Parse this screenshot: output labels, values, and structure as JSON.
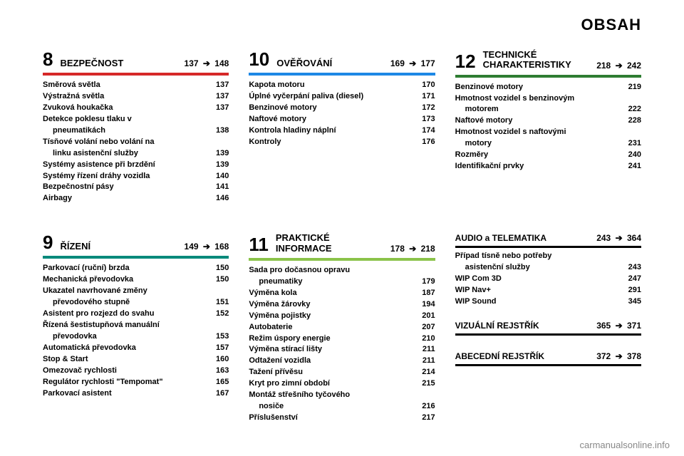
{
  "page_title": "OBSAH",
  "footer": "carmanualsonline.info",
  "sections": [
    {
      "num": "8",
      "title": "BEZPEČNOST",
      "from": "137",
      "to": "148",
      "rule": "rule-red",
      "items": [
        {
          "label": "Směrová světla",
          "page": "137"
        },
        {
          "label": "Výstražná světla",
          "page": "137"
        },
        {
          "label": "Zvuková houkačka",
          "page": "137"
        },
        {
          "label": "Detekce poklesu tlaku v",
          "page": ""
        },
        {
          "label": "pneumatikách",
          "page": "138",
          "indent": true
        },
        {
          "label": "Tísňové volání nebo volání na",
          "page": ""
        },
        {
          "label": "linku asistenční služby",
          "page": "139",
          "indent": true
        },
        {
          "label": "Systémy asistence při brzdění",
          "page": "139"
        },
        {
          "label": "Systémy řízení dráhy vozidla",
          "page": "140"
        },
        {
          "label": "Bezpečnostní pásy",
          "page": "141"
        },
        {
          "label": "Airbagy",
          "page": "146"
        }
      ]
    },
    {
      "num": "10",
      "title": "OVĚŘOVÁNÍ",
      "from": "169",
      "to": "177",
      "rule": "rule-blue",
      "items": [
        {
          "label": "Kapota motoru",
          "page": "170"
        },
        {
          "label": "Úplné vyčerpání paliva (diesel)",
          "page": "171"
        },
        {
          "label": "Benzinové motory",
          "page": "172"
        },
        {
          "label": "Naftové motory",
          "page": "173"
        },
        {
          "label": "Kontrola hladiny náplní",
          "page": "174"
        },
        {
          "label": "Kontroly",
          "page": "176"
        }
      ]
    },
    {
      "num": "12",
      "title": "TECHNICKÉ CHARAKTERISTIKY",
      "from": "218",
      "to": "242",
      "rule": "rule-green",
      "items": [
        {
          "label": "Benzinové motory",
          "page": "219"
        },
        {
          "label": "Hmotnost vozidel s benzinovým",
          "page": ""
        },
        {
          "label": "motorem",
          "page": "222",
          "indent": true
        },
        {
          "label": "Naftové motory",
          "page": "228"
        },
        {
          "label": "Hmotnost vozidel s naftovými",
          "page": ""
        },
        {
          "label": "motory",
          "page": "231",
          "indent": true
        },
        {
          "label": "Rozměry",
          "page": "240"
        },
        {
          "label": "Identifikační prvky",
          "page": "241"
        }
      ]
    },
    {
      "num": "9",
      "title": "ŘÍZENÍ",
      "from": "149",
      "to": "168",
      "rule": "rule-teal",
      "items": [
        {
          "label": "Parkovací (ruční) brzda",
          "page": "150"
        },
        {
          "label": "Mechanická převodovka",
          "page": "150"
        },
        {
          "label": "Ukazatel navrhované změny",
          "page": ""
        },
        {
          "label": "převodového stupně",
          "page": "151",
          "indent": true
        },
        {
          "label": "Asistent pro rozjezd do svahu",
          "page": "152"
        },
        {
          "label": "Řízená šestistupňová manuální",
          "page": ""
        },
        {
          "label": "převodovka",
          "page": "153",
          "indent": true
        },
        {
          "label": "Automatická převodovka",
          "page": "157"
        },
        {
          "label": "Stop & Start",
          "page": "160"
        },
        {
          "label": "Omezovač rychlosti",
          "page": "163"
        },
        {
          "label": "Regulátor rychlosti \"Tempomat\"",
          "page": "165"
        },
        {
          "label": "Parkovací asistent",
          "page": "167"
        }
      ]
    },
    {
      "num": "11",
      "title": "PRAKTICKÉ INFORMACE",
      "from": "178",
      "to": "218",
      "rule": "rule-lime",
      "items": [
        {
          "label": "Sada pro dočasnou opravu",
          "page": ""
        },
        {
          "label": "pneumatiky",
          "page": "179",
          "indent": true
        },
        {
          "label": "Výměna kola",
          "page": "187"
        },
        {
          "label": "Výměna žárovky",
          "page": "194"
        },
        {
          "label": "Výměna pojistky",
          "page": "201"
        },
        {
          "label": "Autobaterie",
          "page": "207"
        },
        {
          "label": "Režim úspory energie",
          "page": "210"
        },
        {
          "label": "Výměna stírací lišty",
          "page": "211"
        },
        {
          "label": "Odtažení vozidla",
          "page": "211"
        },
        {
          "label": "Tažení přívěsu",
          "page": "214"
        },
        {
          "label": "Kryt pro zimní období",
          "page": "215"
        },
        {
          "label": "Montáž střešního tyčového",
          "page": ""
        },
        {
          "label": "nosiče",
          "page": "216",
          "indent": true
        },
        {
          "label": "Příslušenství",
          "page": "217"
        }
      ]
    }
  ],
  "mini": [
    {
      "title": "AUDIO a TELEMATIKA",
      "from": "243",
      "to": "364",
      "rule": "rule-orange",
      "items": [
        {
          "label": "Případ tísně nebo potřeby",
          "page": ""
        },
        {
          "label": "asistenční služby",
          "page": "243",
          "indent": true
        },
        {
          "label": "WIP Com 3D",
          "page": "247"
        },
        {
          "label": "WIP Nav+",
          "page": "291"
        },
        {
          "label": "WIP Sound",
          "page": "345"
        }
      ]
    },
    {
      "title": "VIZUÁLNÍ REJSTŘÍK",
      "from": "365",
      "to": "371",
      "items": []
    },
    {
      "title": "ABECEDNÍ REJSTŘÍK",
      "from": "372",
      "to": "378",
      "items": []
    }
  ]
}
